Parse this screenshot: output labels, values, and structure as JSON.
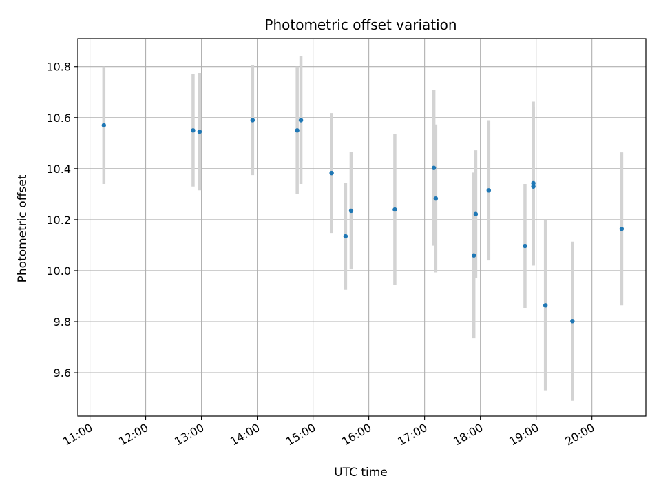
{
  "chart_data": {
    "type": "scatter",
    "title": "Photometric offset variation",
    "xlabel": "UTC time",
    "ylabel": "Photometric offset",
    "x_unit": "UTC time (HH:MM)",
    "xlim": [
      "10:47",
      "20:58"
    ],
    "ylim": [
      9.43,
      10.91
    ],
    "x_ticks": [
      "11:00",
      "12:00",
      "13:00",
      "14:00",
      "15:00",
      "16:00",
      "17:00",
      "18:00",
      "19:00",
      "20:00"
    ],
    "y_ticks": [
      9.6,
      9.8,
      10.0,
      10.2,
      10.4,
      10.6,
      10.8
    ],
    "y_tick_labels": [
      "9.6",
      "9.8",
      "10.0",
      "10.2",
      "10.4",
      "10.6",
      "10.8"
    ],
    "grid": true,
    "legend": "none",
    "colors": {
      "points": "#1f77b4",
      "errorbars": "#d3d3d3",
      "grid": "#b0b0b0"
    },
    "series": [
      {
        "marker": "dot",
        "points": [
          {
            "x": "11:15",
            "y": 10.57,
            "err": 0.23
          },
          {
            "x": "12:51",
            "y": 10.55,
            "err": 0.22
          },
          {
            "x": "12:58",
            "y": 10.545,
            "err": 0.23
          },
          {
            "x": "13:55",
            "y": 10.59,
            "err": 0.215
          },
          {
            "x": "14:43",
            "y": 10.55,
            "err": 0.25
          },
          {
            "x": "14:47",
            "y": 10.59,
            "err": 0.25
          },
          {
            "x": "15:20",
            "y": 10.383,
            "err": 0.235
          },
          {
            "x": "15:35",
            "y": 10.135,
            "err": 0.21
          },
          {
            "x": "15:41",
            "y": 10.235,
            "err": 0.23
          },
          {
            "x": "16:28",
            "y": 10.24,
            "err": 0.295
          },
          {
            "x": "17:10",
            "y": 10.403,
            "err": 0.305
          },
          {
            "x": "17:12",
            "y": 10.283,
            "err": 0.29
          },
          {
            "x": "17:53",
            "y": 10.06,
            "err": 0.325
          },
          {
            "x": "17:55",
            "y": 10.222,
            "err": 0.25
          },
          {
            "x": "18:09",
            "y": 10.315,
            "err": 0.275
          },
          {
            "x": "18:48",
            "y": 10.097,
            "err": 0.243
          },
          {
            "x": "18:57",
            "y": 10.33,
            "err": 0.31
          },
          {
            "x": "18:57",
            "y": 10.343,
            "err": 0.32
          },
          {
            "x": "19:10",
            "y": 9.864,
            "err": 0.333
          },
          {
            "x": "19:39",
            "y": 9.802,
            "err": 0.312
          },
          {
            "x": "20:32",
            "y": 10.164,
            "err": 0.3
          }
        ]
      }
    ]
  }
}
